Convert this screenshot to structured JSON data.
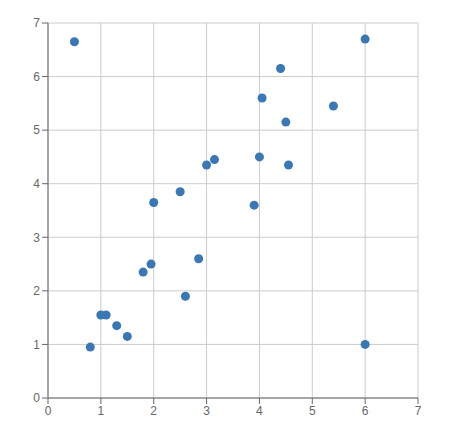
{
  "chart_data": {
    "type": "scatter",
    "x": [
      0.5,
      0.8,
      1.0,
      1.1,
      1.3,
      1.5,
      1.8,
      1.95,
      2.0,
      2.5,
      2.6,
      2.85,
      3.0,
      3.15,
      3.9,
      4.0,
      4.05,
      4.4,
      4.5,
      4.55,
      5.4,
      6.0,
      6.0
    ],
    "values": [
      6.65,
      0.95,
      1.55,
      1.55,
      1.35,
      1.15,
      2.35,
      2.5,
      3.65,
      3.85,
      1.9,
      2.6,
      4.35,
      4.45,
      3.6,
      4.5,
      5.6,
      6.15,
      5.15,
      4.35,
      5.45,
      6.7,
      1.0
    ],
    "color": "#3a78b5",
    "xlim": [
      0,
      7
    ],
    "ylim": [
      0,
      7
    ],
    "xticks": [
      0,
      1,
      2,
      3,
      4,
      5,
      6,
      7
    ],
    "yticks": [
      0,
      1,
      2,
      3,
      4,
      5,
      6,
      7
    ],
    "grid": true
  }
}
